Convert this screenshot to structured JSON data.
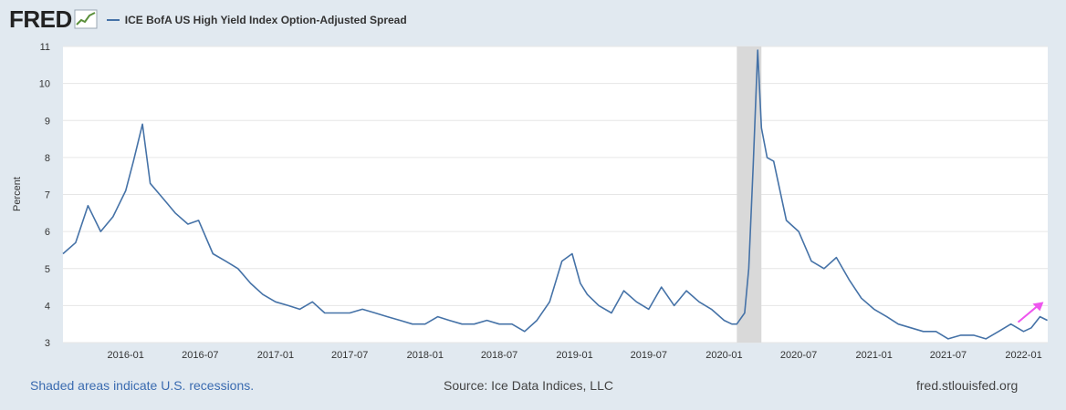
{
  "header": {
    "logo": "FRED",
    "legend_label": "ICE BofA US High Yield Index Option-Adjusted Spread"
  },
  "footer": {
    "recession_note": "Shaded areas indicate U.S. recessions.",
    "source": "Source: Ice Data Indices, LLC",
    "site": "fred.stlouisfed.org"
  },
  "colors": {
    "series": "#4572a7",
    "recession": "#d9d9d9",
    "arrow": "#ee55ee",
    "background": "#e1e9f0",
    "plot": "#ffffff"
  },
  "chart_data": {
    "type": "line",
    "title": "ICE BofA US High Yield Index Option-Adjusted Spread",
    "xlabel": "",
    "ylabel": "Percent",
    "ylim": [
      3,
      11
    ],
    "xlim": [
      "2015-08-01",
      "2022-03-01"
    ],
    "grid": true,
    "y_ticks": [
      "3",
      "4",
      "5",
      "6",
      "7",
      "8",
      "9",
      "10",
      "11"
    ],
    "x_ticks": [
      "2016-01",
      "2016-07",
      "2017-01",
      "2017-07",
      "2018-01",
      "2018-07",
      "2019-01",
      "2019-07",
      "2020-01",
      "2020-07",
      "2021-01",
      "2021-07",
      "2022-01"
    ],
    "recession": {
      "start": "2020-02",
      "end": "2020-04"
    },
    "annotation": {
      "type": "arrow",
      "from": "2022-01",
      "to": "2022-02"
    },
    "series": [
      {
        "name": "ICE BofA US High Yield Index Option-Adjusted Spread",
        "x": [
          "2015-08-01",
          "2015-09-01",
          "2015-10-01",
          "2015-11-01",
          "2015-12-01",
          "2016-01-01",
          "2016-01-20",
          "2016-02-11",
          "2016-03-01",
          "2016-04-01",
          "2016-05-01",
          "2016-06-01",
          "2016-06-27",
          "2016-08-01",
          "2016-09-01",
          "2016-10-01",
          "2016-11-01",
          "2016-12-01",
          "2017-01-01",
          "2017-02-01",
          "2017-03-01",
          "2017-04-01",
          "2017-05-01",
          "2017-06-01",
          "2017-07-01",
          "2017-08-01",
          "2017-09-01",
          "2017-10-01",
          "2017-11-01",
          "2017-12-01",
          "2018-01-01",
          "2018-02-01",
          "2018-03-01",
          "2018-04-01",
          "2018-05-01",
          "2018-06-01",
          "2018-07-01",
          "2018-08-01",
          "2018-09-01",
          "2018-10-01",
          "2018-11-01",
          "2018-12-01",
          "2018-12-26",
          "2019-01-15",
          "2019-02-01",
          "2019-03-01",
          "2019-04-01",
          "2019-05-01",
          "2019-06-01",
          "2019-07-01",
          "2019-08-01",
          "2019-09-01",
          "2019-10-01",
          "2019-11-01",
          "2019-12-01",
          "2020-01-01",
          "2020-01-20",
          "2020-02-01",
          "2020-02-20",
          "2020-03-01",
          "2020-03-12",
          "2020-03-23",
          "2020-04-01",
          "2020-04-15",
          "2020-05-01",
          "2020-06-01",
          "2020-07-01",
          "2020-08-01",
          "2020-09-01",
          "2020-10-01",
          "2020-11-01",
          "2020-12-01",
          "2021-01-01",
          "2021-02-01",
          "2021-03-01",
          "2021-04-01",
          "2021-05-01",
          "2021-06-01",
          "2021-07-01",
          "2021-08-01",
          "2021-09-01",
          "2021-10-01",
          "2021-11-01",
          "2021-12-01",
          "2022-01-01",
          "2022-01-20",
          "2022-02-10",
          "2022-02-28"
        ],
        "values": [
          5.4,
          5.7,
          6.7,
          6.0,
          6.4,
          7.1,
          7.9,
          8.9,
          7.3,
          6.9,
          6.5,
          6.2,
          6.3,
          5.4,
          5.2,
          5.0,
          4.6,
          4.3,
          4.1,
          4.0,
          3.9,
          4.1,
          3.8,
          3.8,
          3.8,
          3.9,
          3.8,
          3.7,
          3.6,
          3.5,
          3.5,
          3.7,
          3.6,
          3.5,
          3.5,
          3.6,
          3.5,
          3.5,
          3.3,
          3.6,
          4.1,
          5.2,
          5.4,
          4.6,
          4.3,
          4.0,
          3.8,
          4.4,
          4.1,
          3.9,
          4.5,
          4.0,
          4.4,
          4.1,
          3.9,
          3.6,
          3.5,
          3.5,
          3.8,
          5.0,
          7.8,
          10.9,
          8.8,
          8.0,
          7.9,
          6.3,
          6.0,
          5.2,
          5.0,
          5.3,
          4.7,
          4.2,
          3.9,
          3.7,
          3.5,
          3.4,
          3.3,
          3.3,
          3.1,
          3.2,
          3.2,
          3.1,
          3.3,
          3.5,
          3.3,
          3.4,
          3.7,
          3.6
        ]
      }
    ]
  }
}
